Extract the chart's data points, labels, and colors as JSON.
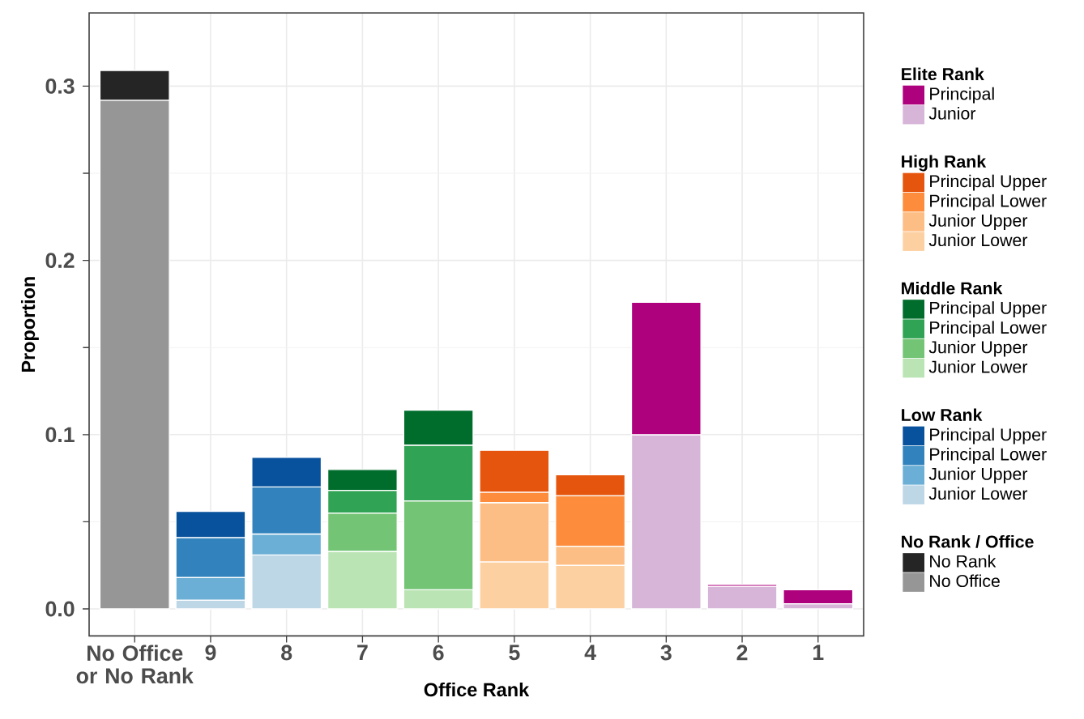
{
  "chart_data": {
    "type": "bar",
    "stacked": true,
    "xlabel": "Office Rank",
    "ylabel": "Proportion",
    "categories": [
      "No Office or No Rank",
      "9",
      "8",
      "7",
      "6",
      "5",
      "4",
      "3",
      "2",
      "1"
    ],
    "ylim": [
      -0.0155,
      0.342
    ],
    "yticks": [
      {
        "value": 0,
        "label": "0.0"
      },
      {
        "value": 0.1,
        "label": "0.1"
      },
      {
        "value": 0.2,
        "label": "0.2"
      },
      {
        "value": 0.3,
        "label": "0.3"
      }
    ],
    "grid": true,
    "legend": "right",
    "annotations": [
      "No Rank / Office",
      "Low Rank",
      "Middle Rank",
      "High Rank",
      "Elite Rank"
    ],
    "series": [
      {
        "name": "No Office",
        "color": "#969696",
        "values": [
          0.292,
          null,
          null,
          null,
          null,
          null,
          null,
          null,
          null,
          null
        ]
      },
      {
        "name": "No Rank",
        "color": "#252525",
        "values": [
          0.017,
          null,
          null,
          null,
          null,
          null,
          null,
          null,
          null,
          null
        ]
      },
      {
        "name": "Junior Lower",
        "color": "#bdd7e7",
        "values": [
          null,
          0.005,
          0.031,
          null,
          null,
          null,
          null,
          null,
          null,
          null
        ]
      },
      {
        "name": "Junior Upper",
        "color": "#6baed6",
        "values": [
          null,
          0.013,
          0.012,
          null,
          null,
          null,
          null,
          null,
          null,
          null
        ]
      },
      {
        "name": "Principal Lower",
        "color": "#3182bd",
        "values": [
          null,
          0.023,
          0.027,
          null,
          null,
          null,
          null,
          null,
          null,
          null
        ]
      },
      {
        "name": "Principal Upper",
        "color": "#08519c",
        "values": [
          null,
          0.015,
          0.017,
          null,
          null,
          null,
          null,
          null,
          null,
          null
        ]
      },
      {
        "name": "Junior Lower",
        "color": "#bae4b3",
        "values": [
          null,
          null,
          null,
          0.033,
          0.011,
          null,
          null,
          null,
          null,
          null
        ]
      },
      {
        "name": "Junior Upper",
        "color": "#74c476",
        "values": [
          null,
          null,
          null,
          0.022,
          0.051,
          null,
          null,
          null,
          null,
          null
        ]
      },
      {
        "name": "Principal Lower",
        "color": "#31a354",
        "values": [
          null,
          null,
          null,
          0.013,
          0.032,
          null,
          null,
          null,
          null,
          null
        ]
      },
      {
        "name": "Principal Upper",
        "color": "#006d2c",
        "values": [
          null,
          null,
          null,
          0.012,
          0.02,
          null,
          null,
          null,
          null,
          null
        ]
      },
      {
        "name": "Junior Lower",
        "color": "#fdd0a2",
        "values": [
          null,
          null,
          null,
          null,
          null,
          0.027,
          0.025,
          null,
          null,
          null
        ]
      },
      {
        "name": "Junior Upper",
        "color": "#fdbe85",
        "values": [
          null,
          null,
          null,
          null,
          null,
          0.034,
          0.011,
          null,
          null,
          null
        ]
      },
      {
        "name": "Principal Lower",
        "color": "#fd8d3c",
        "values": [
          null,
          null,
          null,
          null,
          null,
          0.006,
          0.029,
          null,
          null,
          null
        ]
      },
      {
        "name": "Principal Upper",
        "color": "#e6550d",
        "values": [
          null,
          null,
          null,
          null,
          null,
          0.024,
          0.012,
          null,
          null,
          null
        ]
      },
      {
        "name": "Junior",
        "color": "#d7b5d8",
        "values": [
          null,
          null,
          null,
          null,
          null,
          null,
          null,
          0.1,
          0.013,
          0.003
        ]
      },
      {
        "name": "Principal",
        "color": "#ae017e",
        "values": [
          null,
          null,
          null,
          null,
          null,
          null,
          null,
          0.076,
          0.001,
          0.008
        ]
      }
    ]
  }
}
